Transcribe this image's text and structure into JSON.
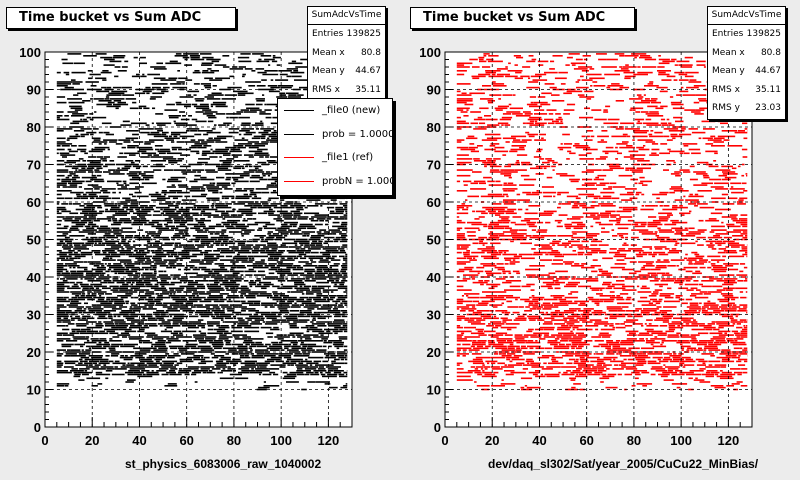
{
  "chart_data": [
    {
      "type": "scatter",
      "title": "Time bucket vs Sum ADC",
      "xlabel": "st_physics_6083006_raw_1040002",
      "ylabel": "",
      "xlim": [
        0,
        130
      ],
      "ylim": [
        0,
        100
      ],
      "x_ticks": [
        0,
        20,
        40,
        60,
        80,
        100,
        120
      ],
      "y_ticks": [
        0,
        10,
        20,
        30,
        40,
        50,
        60,
        70,
        80,
        90,
        100
      ],
      "grid": true,
      "marker_color": "#000000",
      "data_x_range": [
        5,
        128
      ],
      "data_y_range": [
        10,
        99
      ],
      "series": [
        {
          "name": "_file0 (new)",
          "color": "#000000"
        },
        {
          "name": "prob = 1.000000",
          "color": "#000000"
        },
        {
          "name": "_file1 (ref)",
          "color": "#ff0000"
        },
        {
          "name": "probN = 1.000000",
          "color": "#ff0000"
        }
      ],
      "legend_placement": "top-right",
      "stats": {
        "name": "SumAdcVsTime",
        "rows": [
          {
            "label": "Entries",
            "value": "139825"
          },
          {
            "label": "Mean x",
            "value": "80.8"
          },
          {
            "label": "Mean y",
            "value": "44.67"
          },
          {
            "label": "RMS x",
            "value": "35.11"
          }
        ]
      }
    },
    {
      "type": "scatter",
      "title": "Time bucket vs Sum ADC",
      "xlabel": "dev/daq_sl302/Sat/year_2005/CuCu22_MinBias/",
      "ylabel": "",
      "xlim": [
        0,
        130
      ],
      "ylim": [
        0,
        100
      ],
      "x_ticks": [
        0,
        20,
        40,
        60,
        80,
        100,
        120
      ],
      "y_ticks": [
        0,
        10,
        20,
        30,
        40,
        50,
        60,
        70,
        80,
        90,
        100
      ],
      "grid": true,
      "marker_color": "#ff0000",
      "data_x_range": [
        5,
        128
      ],
      "data_y_range": [
        10,
        99
      ],
      "stats": {
        "name": "SumAdcVsTime",
        "rows": [
          {
            "label": "Entries",
            "value": "139825"
          },
          {
            "label": "Mean x",
            "value": "80.8"
          },
          {
            "label": "Mean y",
            "value": "44.67"
          },
          {
            "label": "RMS x",
            "value": "35.11"
          },
          {
            "label": "RMS y",
            "value": "23.03"
          }
        ]
      }
    }
  ]
}
